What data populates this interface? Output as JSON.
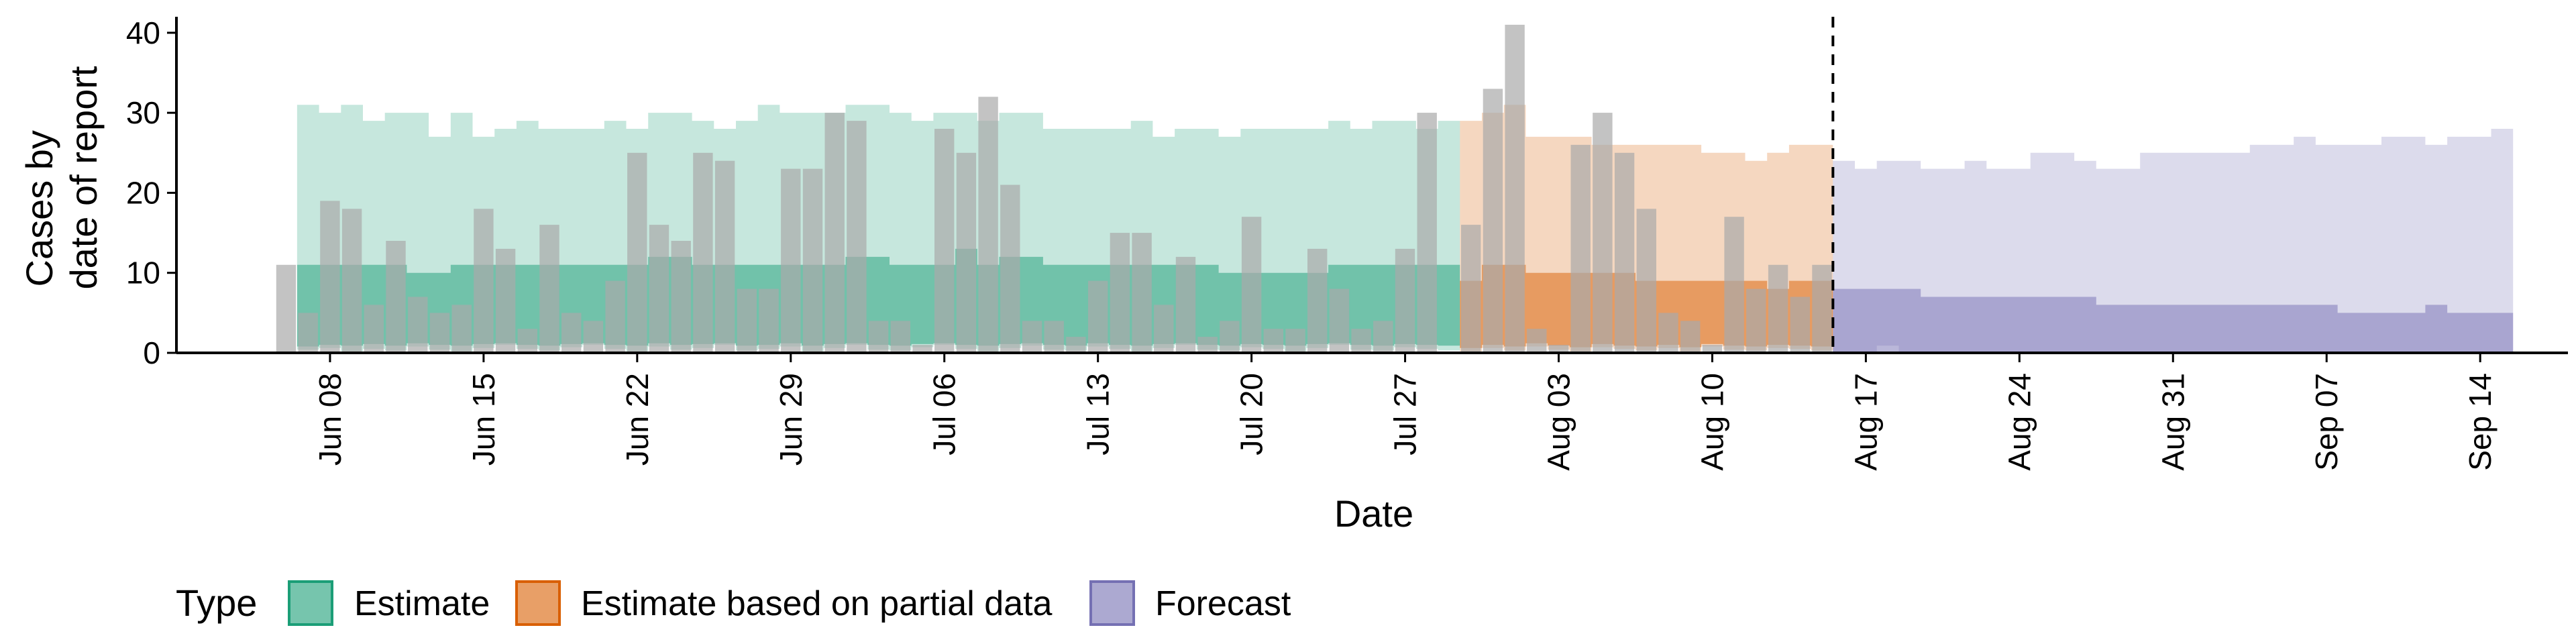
{
  "chart_data": {
    "type": "bar",
    "xlabel": "Date",
    "ylabel_lines": [
      "Cases by",
      "date of report"
    ],
    "ylim": [
      0,
      42
    ],
    "yticks": [
      0,
      10,
      20,
      30,
      40
    ],
    "xlim": [
      "2020-06-01",
      "2020-09-18"
    ],
    "xticks": [
      {
        "date": "2020-06-08",
        "label": "Jun 08"
      },
      {
        "date": "2020-06-15",
        "label": "Jun 15"
      },
      {
        "date": "2020-06-22",
        "label": "Jun 22"
      },
      {
        "date": "2020-06-29",
        "label": "Jun 29"
      },
      {
        "date": "2020-07-06",
        "label": "Jul 06"
      },
      {
        "date": "2020-07-13",
        "label": "Jul 13"
      },
      {
        "date": "2020-07-20",
        "label": "Jul 20"
      },
      {
        "date": "2020-07-27",
        "label": "Jul 27"
      },
      {
        "date": "2020-08-03",
        "label": "Aug 03"
      },
      {
        "date": "2020-08-10",
        "label": "Aug 10"
      },
      {
        "date": "2020-08-17",
        "label": "Aug 17"
      },
      {
        "date": "2020-08-24",
        "label": "Aug 24"
      },
      {
        "date": "2020-08-31",
        "label": "Aug 31"
      },
      {
        "date": "2020-09-07",
        "label": "Sep 07"
      },
      {
        "date": "2020-09-14",
        "label": "Sep 14"
      }
    ],
    "forecast_date": "2020-08-15",
    "bars": {
      "start_date": "2020-06-06",
      "color": "#a9a9a9",
      "values": [
        11,
        5,
        19,
        18,
        6,
        14,
        7,
        5,
        6,
        18,
        13,
        3,
        16,
        5,
        4,
        9,
        25,
        16,
        14,
        25,
        24,
        8,
        8,
        23,
        23,
        30,
        29,
        4,
        4,
        1,
        28,
        25,
        32,
        21,
        4,
        4,
        2,
        9,
        15,
        15,
        6,
        12,
        2,
        4,
        17,
        3,
        3,
        13,
        8,
        3,
        4,
        13,
        30,
        0,
        16,
        33,
        41,
        3,
        1,
        26,
        30,
        25,
        18,
        5,
        4,
        1,
        17,
        8,
        11,
        7,
        11
      ]
    },
    "legend_title": "Type",
    "legend_position": "bottom",
    "series": [
      {
        "name": "Estimate",
        "color": "#1b9e77",
        "start_date": "2020-06-07",
        "end_date": "2020-07-29",
        "outer_low": [
          0.4,
          0.6,
          0.2,
          0.5,
          0.3,
          0.8,
          0.4,
          0.2,
          0.6,
          1.0,
          0.5,
          0.3,
          0.7,
          1.0,
          0.5,
          0.2,
          0.8,
          0.4,
          0.6,
          1.0,
          0.3,
          0.5,
          0.8,
          0.2,
          0.6,
          1.0,
          0.4,
          0.3,
          0.7,
          1.0,
          0.5,
          0.2,
          0.6,
          0.9,
          0.4,
          0.3,
          0.8,
          0.5,
          0.2,
          0.6,
          1.0,
          0.4,
          0.3,
          0.7,
          0.5,
          0.2,
          0.6,
          1.0,
          0.4,
          0.3,
          0.7,
          0.5,
          0.3
        ],
        "inner_low": [
          0.8,
          1.0,
          0.9,
          1.1,
          0.9,
          1.2,
          1.0,
          0.9,
          1.1,
          1.2,
          1.0,
          0.9,
          1.1,
          1.2,
          1.0,
          0.9,
          1.2,
          1.0,
          1.1,
          1.2,
          0.9,
          1.0,
          1.2,
          0.9,
          1.1,
          1.2,
          1.0,
          0.9,
          1.1,
          1.2,
          1.0,
          0.9,
          1.1,
          1.2,
          1.0,
          0.9,
          1.2,
          1.0,
          0.9,
          1.1,
          1.2,
          1.0,
          0.9,
          1.1,
          1.0,
          0.9,
          1.1,
          1.2,
          1.0,
          0.9,
          1.1,
          1.0,
          0.9
        ],
        "inner_high": [
          11,
          11,
          11,
          11,
          11,
          10,
          10,
          11,
          11,
          11,
          11,
          11,
          11,
          11,
          11,
          11,
          12,
          12,
          11,
          11,
          11,
          11,
          11,
          11,
          11,
          12,
          12,
          11,
          11,
          11,
          13,
          11,
          12,
          12,
          11,
          11,
          11,
          11,
          11,
          11,
          11,
          11,
          10,
          10,
          10,
          10,
          10,
          11,
          11,
          11,
          11,
          11,
          11
        ],
        "outer_high": [
          31,
          30,
          31,
          29,
          30,
          30,
          27,
          30,
          27,
          28,
          29,
          28,
          28,
          28,
          29,
          28,
          30,
          30,
          29,
          28,
          29,
          31,
          30,
          30,
          30,
          31,
          31,
          30,
          29,
          30,
          30,
          29,
          30,
          30,
          28,
          28,
          28,
          28,
          29,
          27,
          28,
          28,
          27,
          28,
          28,
          28,
          28,
          29,
          28,
          29,
          29,
          28,
          29
        ]
      },
      {
        "name": "Estimate based on partial data",
        "color": "#d95f02",
        "start_date": "2020-07-30",
        "end_date": "2020-08-15",
        "outer_low": [
          0.2,
          0.6,
          0.3,
          0.8,
          0.4,
          0.2,
          0.7,
          0.5,
          0.3,
          0.6,
          0.2,
          0.8,
          0.4,
          0.3,
          0.6,
          0.5,
          0.3
        ],
        "inner_low": [
          0.6,
          1.0,
          0.8,
          1.2,
          0.9,
          0.7,
          1.1,
          0.9,
          0.8,
          1.0,
          0.7,
          1.1,
          0.9,
          0.8,
          1.0,
          0.9,
          0.8
        ],
        "inner_high": [
          9,
          11,
          11,
          10,
          10,
          10,
          10,
          10,
          9,
          9,
          9,
          9,
          9,
          9,
          8,
          9,
          9
        ],
        "outer_high": [
          29,
          30,
          31,
          27,
          27,
          27,
          26,
          26,
          26,
          26,
          26,
          25,
          25,
          24,
          25,
          26,
          26
        ]
      },
      {
        "name": "Forecast",
        "color": "#7570b3",
        "start_date": "2020-08-16",
        "end_date": "2020-09-15",
        "outer_low": [
          0,
          0,
          0.9,
          0,
          0,
          0,
          0,
          0,
          0,
          0,
          0,
          0,
          0,
          0,
          0,
          0,
          0,
          0,
          0,
          0,
          0,
          0,
          0,
          0,
          0,
          0,
          0,
          0,
          0,
          0,
          0
        ],
        "inner_low": [
          0,
          0,
          0,
          0,
          0,
          0,
          0,
          0,
          0,
          0,
          0,
          0,
          0,
          0,
          0,
          0,
          0,
          0,
          0,
          0,
          0,
          0,
          0,
          0,
          0,
          0,
          0,
          0,
          0,
          0,
          0
        ],
        "inner_high": [
          8,
          8,
          8,
          8,
          7,
          7,
          7,
          7,
          7,
          7,
          7,
          7,
          6,
          6,
          6,
          6,
          6,
          6,
          6,
          6,
          6,
          6,
          6,
          5,
          5,
          5,
          5,
          6,
          5,
          5,
          5
        ],
        "outer_high": [
          24,
          23,
          24,
          24,
          23,
          23,
          24,
          23,
          23,
          25,
          25,
          24,
          23,
          23,
          25,
          25,
          25,
          25,
          25,
          26,
          26,
          27,
          26,
          26,
          26,
          27,
          27,
          26,
          27,
          27,
          28
        ]
      }
    ]
  }
}
